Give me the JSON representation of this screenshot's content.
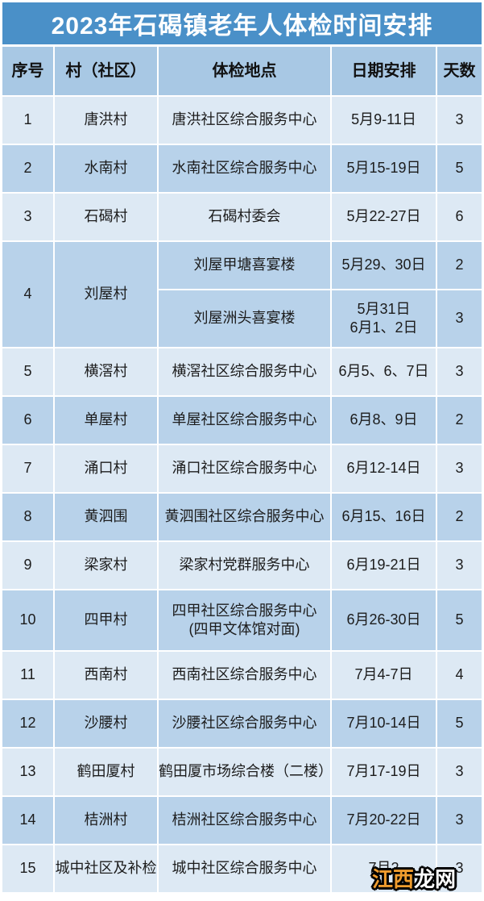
{
  "title": {
    "text": "2023年石碣镇老年人体检时间安排",
    "bg": "#4a90c8",
    "color": "#ffffff"
  },
  "table": {
    "headers": [
      "序号",
      "村（社区）",
      "体检地点",
      "日期安排",
      "天数"
    ],
    "header_bg": "#a8c8e4",
    "row_light_bg": "#dde9f4",
    "row_dark_bg": "#b8d2ea",
    "rows": [
      {
        "no": "1",
        "village": "唐洪村",
        "location": "唐洪社区综合服务中心",
        "date": "5月9-11日",
        "days": "3"
      },
      {
        "no": "2",
        "village": "水南村",
        "location": "水南社区综合服务中心",
        "date": "5月15-19日",
        "days": "5"
      },
      {
        "no": "3",
        "village": "石碣村",
        "location": "石碣村委会",
        "date": "5月22-27日",
        "days": "6"
      },
      {
        "no": "4",
        "village": "刘屋村",
        "subrows": [
          {
            "location": "刘屋甲塘喜宴楼",
            "date": "5月29、30日",
            "days": "2"
          },
          {
            "location": "刘屋洲头喜宴楼",
            "date": "5月31日\n6月1、2日",
            "days": "3"
          }
        ]
      },
      {
        "no": "5",
        "village": "横滘村",
        "location": "横滘社区综合服务中心",
        "date": "6月5、6、7日",
        "days": "3"
      },
      {
        "no": "6",
        "village": "单屋村",
        "location": "单屋社区综合服务中心",
        "date": "6月8、9日",
        "days": "2"
      },
      {
        "no": "7",
        "village": "涌口村",
        "location": "涌口社区综合服务中心",
        "date": "6月12-14日",
        "days": "3"
      },
      {
        "no": "8",
        "village": "黄泗围",
        "location": "黄泗围社区综合服务中心",
        "date": "6月15、16日",
        "days": "2"
      },
      {
        "no": "9",
        "village": "梁家村",
        "location": "梁家村党群服务中心",
        "date": "6月19-21日",
        "days": "3"
      },
      {
        "no": "10",
        "village": "四甲村",
        "location": "四甲社区综合服务中心\n(四甲文体馆对面)",
        "date": "6月26-30日",
        "days": "5"
      },
      {
        "no": "11",
        "village": "西南村",
        "location": "西南社区综合服务中心",
        "date": "7月4-7日",
        "days": "4"
      },
      {
        "no": "12",
        "village": "沙腰村",
        "location": "沙腰社区综合服务中心",
        "date": "7月10-14日",
        "days": "5"
      },
      {
        "no": "13",
        "village": "鹤田厦村",
        "location": "鹤田厦市场综合楼（二楼）",
        "date": "7月17-19日",
        "days": "3"
      },
      {
        "no": "14",
        "village": "桔洲村",
        "location": "桔洲社区综合服务中心",
        "date": "7月20-22日",
        "days": "3"
      },
      {
        "no": "15",
        "village": "城中社区及补检",
        "location": "城中社区综合服务中心",
        "date": "7月2",
        "days": "3"
      }
    ]
  },
  "watermark": {
    "text_orange": "江西",
    "text_white": "龙网",
    "orange": "#ef9c2e",
    "white": "#ffffff",
    "outline": "#000000"
  }
}
